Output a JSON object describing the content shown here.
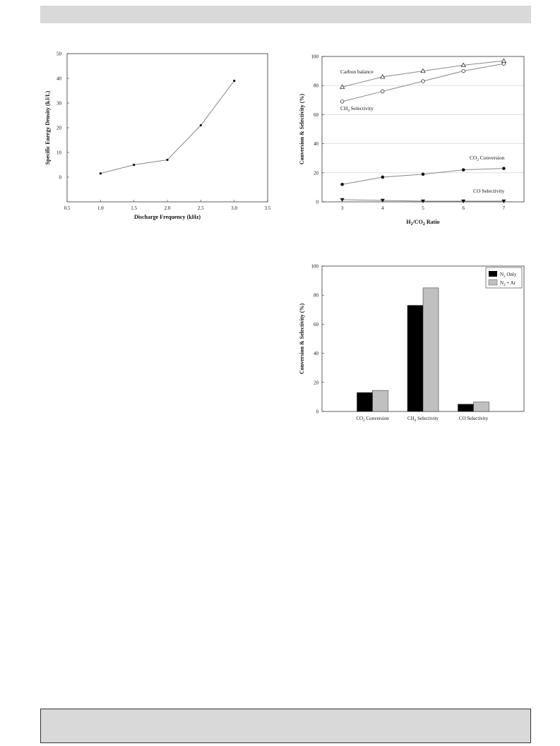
{
  "charts": [
    {
      "type": "line",
      "xlabel": "Discharge Frequency (kHz)",
      "ylabel": "Specific Energy Density (kJ/L)",
      "xlim": [
        0.5,
        3.5
      ],
      "ylim": [
        -10,
        50
      ],
      "x_ticks": [
        "0.5",
        "1.0",
        "1.5",
        "2.0",
        "2.5",
        "3.0",
        "3.5"
      ],
      "y_ticks": [
        "0",
        "10",
        "20",
        "30",
        "40",
        "50"
      ],
      "grid": false,
      "series": [
        {
          "x": [
            1.0,
            1.5,
            2.0,
            2.5,
            3.0
          ],
          "values": [
            1.5,
            5.0,
            7.0,
            21.0,
            39.0
          ]
        }
      ],
      "colors": {
        "line": "#888888",
        "marker": "#111111"
      }
    },
    {
      "type": "line",
      "xlabel": "H2/CO2 Ratio",
      "ylabel": "Conversion & Selectivity (%)",
      "xlim": [
        2.5,
        7.5
      ],
      "ylim": [
        0,
        100
      ],
      "x_ticks": [
        "3",
        "4",
        "5",
        "6",
        "7"
      ],
      "y_ticks": [
        "0",
        "20",
        "40",
        "60",
        "80",
        "100"
      ],
      "grid": true,
      "annotations": [
        "Carbon balance",
        "CH4 Selectivity",
        "CO2 Conversion",
        "CO Selectivity"
      ],
      "series": [
        {
          "x": [
            3,
            4,
            5,
            6,
            7
          ],
          "values": [
            79,
            86,
            90,
            94,
            97
          ],
          "marker": "open-triangle"
        },
        {
          "x": [
            3,
            4,
            5,
            6,
            7
          ],
          "values": [
            69,
            76,
            83,
            90,
            95
          ],
          "marker": "open-circle"
        },
        {
          "x": [
            3,
            4,
            5,
            6,
            7
          ],
          "values": [
            12,
            17,
            19,
            22,
            23
          ],
          "marker": "filled-circle"
        },
        {
          "x": [
            3,
            4,
            5,
            6,
            7
          ],
          "values": [
            1.5,
            1,
            0.5,
            0.5,
            0.5
          ],
          "marker": "filled-triangle-down"
        }
      ],
      "colors": {
        "line": "#888888",
        "marker": "#111111",
        "grid": "#cccccc"
      }
    },
    {
      "type": "bar",
      "ylabel": "Conversion & Selectivity (%)",
      "ylim": [
        0,
        100
      ],
      "y_ticks": [
        "0",
        "20",
        "40",
        "60",
        "80",
        "100"
      ],
      "categories": [
        "CO2 Conversion",
        "CH4 Selectivity",
        "CO Selectivity"
      ],
      "legend_position": "top-right",
      "series": [
        {
          "name": "N2 Only",
          "values": [
            13,
            73,
            5
          ],
          "color": "#000000"
        },
        {
          "name": "N2 + Ar",
          "values": [
            14.5,
            85,
            6.5
          ],
          "color": "#c0c0c0"
        }
      ]
    }
  ]
}
